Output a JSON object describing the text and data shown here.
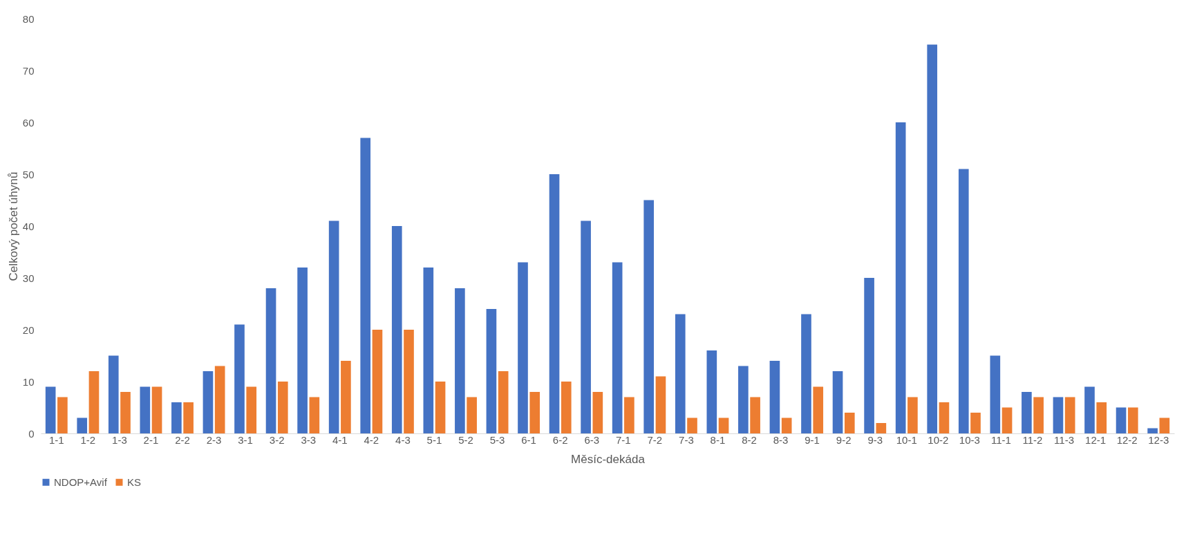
{
  "chart_data": {
    "type": "bar",
    "xlabel": "Měsíc-dekáda",
    "ylabel": "Celkový počet úhynů",
    "categories": [
      "1-1",
      "1-2",
      "1-3",
      "2-1",
      "2-2",
      "2-3",
      "3-1",
      "3-2",
      "3-3",
      "4-1",
      "4-2",
      "4-3",
      "5-1",
      "5-2",
      "5-3",
      "6-1",
      "6-2",
      "6-3",
      "7-1",
      "7-2",
      "7-3",
      "8-1",
      "8-2",
      "8-3",
      "9-1",
      "9-2",
      "9-3",
      "10-1",
      "10-2",
      "10-3",
      "11-1",
      "11-2",
      "11-3",
      "12-1",
      "12-2",
      "12-3"
    ],
    "series": [
      {
        "name": "NDOP+Avif",
        "color": "#4472c4",
        "values": [
          9,
          3,
          15,
          9,
          6,
          12,
          21,
          28,
          32,
          41,
          57,
          40,
          32,
          28,
          24,
          33,
          50,
          41,
          33,
          45,
          23,
          16,
          13,
          14,
          23,
          12,
          30,
          60,
          75,
          51,
          15,
          8,
          7,
          9,
          5,
          1
        ]
      },
      {
        "name": "KS",
        "color": "#ed7d31",
        "values": [
          7,
          12,
          8,
          9,
          6,
          13,
          9,
          10,
          7,
          14,
          20,
          20,
          10,
          7,
          12,
          8,
          10,
          8,
          7,
          11,
          3,
          3,
          7,
          3,
          9,
          4,
          2,
          7,
          6,
          4,
          5,
          7,
          7,
          6,
          5,
          3
        ]
      }
    ],
    "ylim": [
      0,
      80
    ],
    "yticks": [
      0,
      10,
      20,
      30,
      40,
      50,
      60,
      70,
      80
    ],
    "grid": false,
    "legend": "bottom"
  }
}
